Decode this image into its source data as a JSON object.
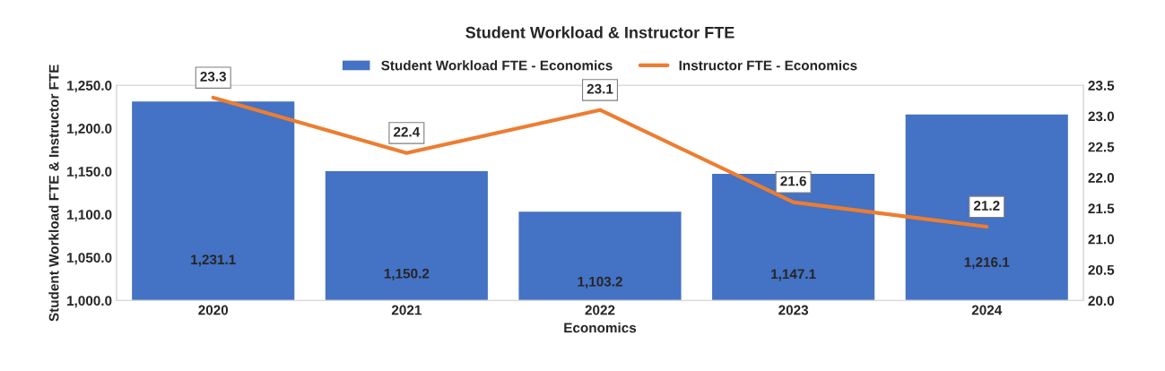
{
  "chart_data": {
    "type": "bar",
    "title": "Student Workload & Instructor FTE",
    "xlabel": "Economics",
    "ylabel": "Student Workload FTE & Instructor FTE",
    "categories": [
      "2020",
      "2021",
      "2022",
      "2023",
      "2024"
    ],
    "series": [
      {
        "name": "Student Workload FTE - Economics",
        "color": "#4472c4",
        "values": [
          1231.1,
          1150.2,
          1103.2,
          1147.1,
          1216.1
        ],
        "value_labels": [
          "1,231.1",
          "1,150.2",
          "1,103.2",
          "1,147.1",
          "1,216.1"
        ]
      },
      {
        "name": "Instructor FTE - Economics",
        "type": "line",
        "axis": "y2",
        "color": "#ed7d31",
        "values": [
          23.3,
          22.4,
          23.1,
          21.6,
          21.2
        ],
        "value_labels": [
          "23.3",
          "22.4",
          "23.1",
          "21.6",
          "21.2"
        ]
      }
    ],
    "ylim": [
      1000,
      1250
    ],
    "yticks": [
      {
        "value": 1000,
        "label": "1,000.0"
      },
      {
        "value": 1050,
        "label": "1,050.0"
      },
      {
        "value": 1100,
        "label": "1,100.0"
      },
      {
        "value": 1150,
        "label": "1,150.0"
      },
      {
        "value": 1200,
        "label": "1,200.0"
      },
      {
        "value": 1250,
        "label": "1,250.0"
      }
    ],
    "y2lim": [
      20,
      23.5
    ],
    "y2ticks": [
      {
        "value": 20,
        "label": "20.0"
      },
      {
        "value": 20.5,
        "label": "20.5"
      },
      {
        "value": 21,
        "label": "21.0"
      },
      {
        "value": 21.5,
        "label": "21.5"
      },
      {
        "value": 22,
        "label": "22.0"
      },
      {
        "value": 22.5,
        "label": "22.5"
      },
      {
        "value": 23,
        "label": "23.0"
      },
      {
        "value": 23.5,
        "label": "23.5"
      }
    ],
    "legend": "top",
    "grid": false,
    "line_style": "solid"
  }
}
